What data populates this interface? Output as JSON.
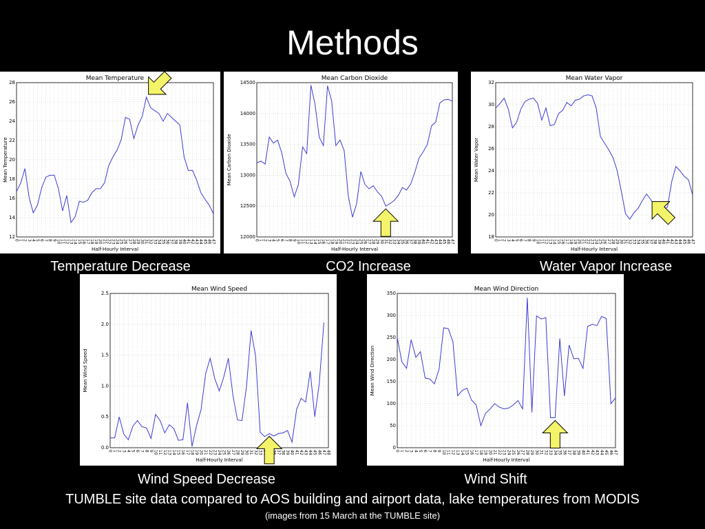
{
  "slide": {
    "title": "Methods",
    "footer_main": "TUMBLE site data compared to AOS building and airport data, lake temperatures from MODIS",
    "footer_sub": "(images from 15 March at the TUMBLE site)"
  },
  "captions": {
    "temperature": "Temperature Decrease",
    "co2": "CO2 Increase",
    "water_vapor": "Water Vapor Increase",
    "wind_speed": "Wind Speed Decrease",
    "wind_direction": "Wind Shift"
  },
  "colors": {
    "line": "#3b3bd6",
    "arrow_fill": "#f4f46a",
    "arrow_stroke": "#000000"
  },
  "chart_data": [
    {
      "id": "temperature",
      "type": "line",
      "title": "Mean Temperature",
      "xlabel": "Half-Hourly Interval",
      "ylabel": "Mean Temperature",
      "ylim": [
        12,
        28
      ],
      "yticks": [
        12,
        14,
        16,
        18,
        20,
        22,
        24,
        26,
        28
      ],
      "xlim": [
        0,
        47
      ],
      "x_start": 0,
      "xtick_max": 47,
      "grid": true,
      "arrow": {
        "at_x": 31,
        "pointing": "down-left"
      },
      "values": [
        16.7,
        17.6,
        19.1,
        16.1,
        14.5,
        15.3,
        17.1,
        18.2,
        18.4,
        18.4,
        17.0,
        14.7,
        16.3,
        13.5,
        14.1,
        15.7,
        15.6,
        15.8,
        16.6,
        17.0,
        17.0,
        17.6,
        19.4,
        20.3,
        21.0,
        22.1,
        24.4,
        24.2,
        22.2,
        23.6,
        24.5,
        26.5,
        25.4,
        25.1,
        24.8,
        24.0,
        24.8,
        24.4,
        24.0,
        23.6,
        20.3,
        18.9,
        18.9,
        17.9,
        16.6,
        15.9,
        15.3,
        14.4
      ]
    },
    {
      "id": "co2",
      "type": "line",
      "title": "Mean Carbon Dioxide",
      "xlabel": "Half-Hourly Interval",
      "ylabel": "Mean Carbon Dioxide",
      "ylim": [
        12000,
        14500
      ],
      "yticks": [
        12000,
        12500,
        13000,
        13500,
        14000,
        14500
      ],
      "xlim": [
        0,
        47
      ],
      "x_start": 0,
      "xtick_max": 47,
      "grid": true,
      "arrow": {
        "at_x": 31,
        "pointing": "up"
      },
      "values": [
        13200,
        13230,
        13180,
        13620,
        13520,
        13570,
        13360,
        13030,
        12900,
        12650,
        12850,
        13460,
        13350,
        14460,
        14150,
        13620,
        13480,
        14450,
        14200,
        13480,
        13570,
        13400,
        12660,
        12320,
        12540,
        13060,
        12850,
        12780,
        12830,
        12730,
        12660,
        12500,
        12540,
        12590,
        12670,
        12800,
        12760,
        12860,
        13050,
        13280,
        13380,
        13500,
        13800,
        13860,
        14170,
        14220,
        14230,
        14200
      ]
    },
    {
      "id": "water_vapor",
      "type": "line",
      "title": "Mean Water Vapor",
      "xlabel": "Half-Hourly Interval",
      "ylabel": "Mean Water Vapor",
      "ylim": [
        18,
        32
      ],
      "yticks": [
        18,
        20,
        22,
        24,
        26,
        28,
        30,
        32
      ],
      "xlim": [
        0,
        47
      ],
      "x_start": 0,
      "xtick_max": 47,
      "grid": true,
      "arrow": {
        "at_x": 37,
        "pointing": "up-left"
      },
      "values": [
        29.7,
        30.1,
        30.6,
        29.6,
        27.9,
        28.4,
        29.6,
        30.3,
        30.5,
        30.6,
        30.1,
        28.6,
        29.7,
        28.1,
        28.2,
        29.2,
        29.5,
        30.2,
        29.9,
        30.4,
        30.5,
        30.8,
        30.9,
        30.8,
        29.7,
        27.1,
        26.5,
        25.9,
        25.2,
        24.0,
        22.1,
        20.1,
        19.6,
        20.2,
        20.6,
        21.3,
        21.9,
        21.4,
        20.8,
        20.2,
        20.5,
        20.7,
        23.0,
        24.4,
        24.0,
        23.5,
        23.2,
        21.8
      ]
    },
    {
      "id": "wind_speed",
      "type": "line",
      "title": "Mean Wind Speed",
      "xlabel": "Half-Hourly Interval",
      "ylabel": "Mean Wind Speed",
      "ylim": [
        0,
        2.5
      ],
      "yticks": [
        0.0,
        0.5,
        1.0,
        1.5,
        2.0,
        2.5
      ],
      "xlim": [
        0,
        48
      ],
      "x_start": 0,
      "xtick_max": 48,
      "grid": true,
      "arrow": {
        "at_x": 35,
        "pointing": "up"
      },
      "values": [
        0.16,
        0.16,
        0.5,
        0.22,
        0.13,
        0.35,
        0.44,
        0.34,
        0.32,
        0.15,
        0.54,
        0.44,
        0.24,
        0.37,
        0.31,
        0.12,
        0.13,
        0.73,
        0.02,
        0.36,
        0.62,
        1.2,
        1.45,
        1.12,
        0.92,
        1.15,
        1.45,
        0.85,
        0.45,
        0.44,
        1.0,
        1.9,
        1.48,
        0.25,
        0.18,
        0.23,
        0.19,
        0.23,
        0.24,
        0.28,
        0.09,
        0.62,
        0.8,
        0.74,
        1.24,
        0.5,
        1.05,
        2.03
      ]
    },
    {
      "id": "wind_direction",
      "type": "line",
      "title": "Mean Wind Direction",
      "xlabel": "Half-Hourly Interval",
      "ylabel": "Mean Wind Direction",
      "ylim": [
        0,
        350
      ],
      "yticks": [
        0,
        50,
        100,
        150,
        200,
        250,
        300,
        350
      ],
      "xlim": [
        0,
        47
      ],
      "x_start": 0,
      "xtick_max": 47,
      "grid": true,
      "arrow": {
        "at_x": 34,
        "pointing": "up"
      },
      "values": [
        250,
        195,
        180,
        245,
        205,
        218,
        158,
        156,
        145,
        178,
        272,
        270,
        240,
        118,
        130,
        135,
        108,
        97,
        50,
        78,
        88,
        100,
        92,
        88,
        90,
        97,
        107,
        88,
        340,
        80,
        299,
        292,
        295,
        68,
        68,
        248,
        117,
        233,
        202,
        203,
        180,
        275,
        280,
        277,
        298,
        293,
        100,
        113
      ]
    }
  ]
}
